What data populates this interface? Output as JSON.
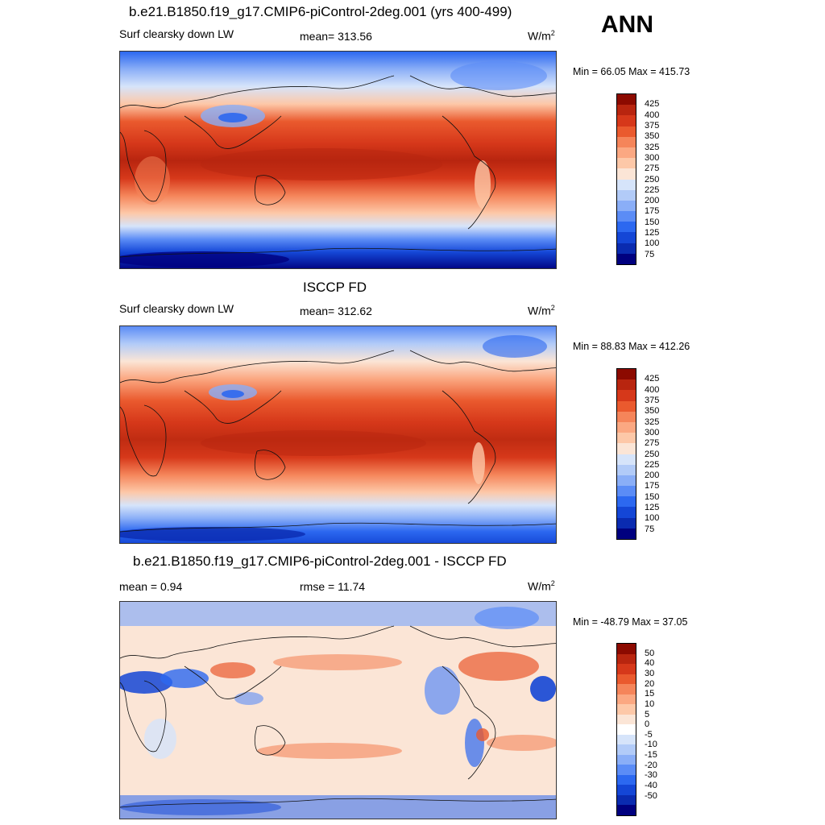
{
  "season": "ANN",
  "colors": {
    "abs_scale": [
      "#00007f",
      "#0a2bb0",
      "#1446d6",
      "#2c68f0",
      "#5b8cf6",
      "#8aaef7",
      "#b2cbf8",
      "#d6e4fa",
      "#fbe5d6",
      "#fdc8a8",
      "#fba882",
      "#f5855a",
      "#ea5a2e",
      "#d6381a",
      "#b8250f",
      "#8c0a00"
    ],
    "diff_scale": [
      "#00007f",
      "#0a2bb0",
      "#1446d6",
      "#2c68f0",
      "#5b8cf6",
      "#8aaef7",
      "#b2cbf8",
      "#d6e4fa",
      "#ffffff",
      "#fbe5d6",
      "#fdc8a8",
      "#fba882",
      "#f5855a",
      "#ea5a2e",
      "#d6381a",
      "#b8250f",
      "#8c0a00"
    ]
  },
  "panels": [
    {
      "title": "b.e21.B1850.f19_g17.CMIP6-piControl-2deg.001 (yrs 400-499)",
      "left_label": "Surf clearsky down LW",
      "center_label": "mean= 313.56",
      "units": "W/m",
      "units_sup": "2",
      "minmax": "Min =  66.05 Max = 415.73",
      "levels": [
        "425",
        "400",
        "375",
        "350",
        "325",
        "300",
        "275",
        "250",
        "225",
        "200",
        "175",
        "150",
        "125",
        "100",
        "75"
      ]
    },
    {
      "title": "ISCCP FD",
      "left_label": "Surf clearsky down LW",
      "center_label": "mean= 312.62",
      "units": "W/m",
      "units_sup": "2",
      "minmax": "Min =  88.83 Max = 412.26",
      "levels": [
        "425",
        "400",
        "375",
        "350",
        "325",
        "300",
        "275",
        "250",
        "225",
        "200",
        "175",
        "150",
        "125",
        "100",
        "75"
      ]
    },
    {
      "title": "b.e21.B1850.f19_g17.CMIP6-piControl-2deg.001 - ISCCP FD",
      "left_label": "mean =   0.94",
      "center_label": "rmse =  11.74",
      "units": "W/m",
      "units_sup": "2",
      "minmax": "Min = -48.79 Max =  37.05",
      "levels": [
        "50",
        "40",
        "30",
        "20",
        "15",
        "10",
        "5",
        "0",
        "-5",
        "-10",
        "-15",
        "-20",
        "-30",
        "-40",
        "-50"
      ]
    }
  ]
}
